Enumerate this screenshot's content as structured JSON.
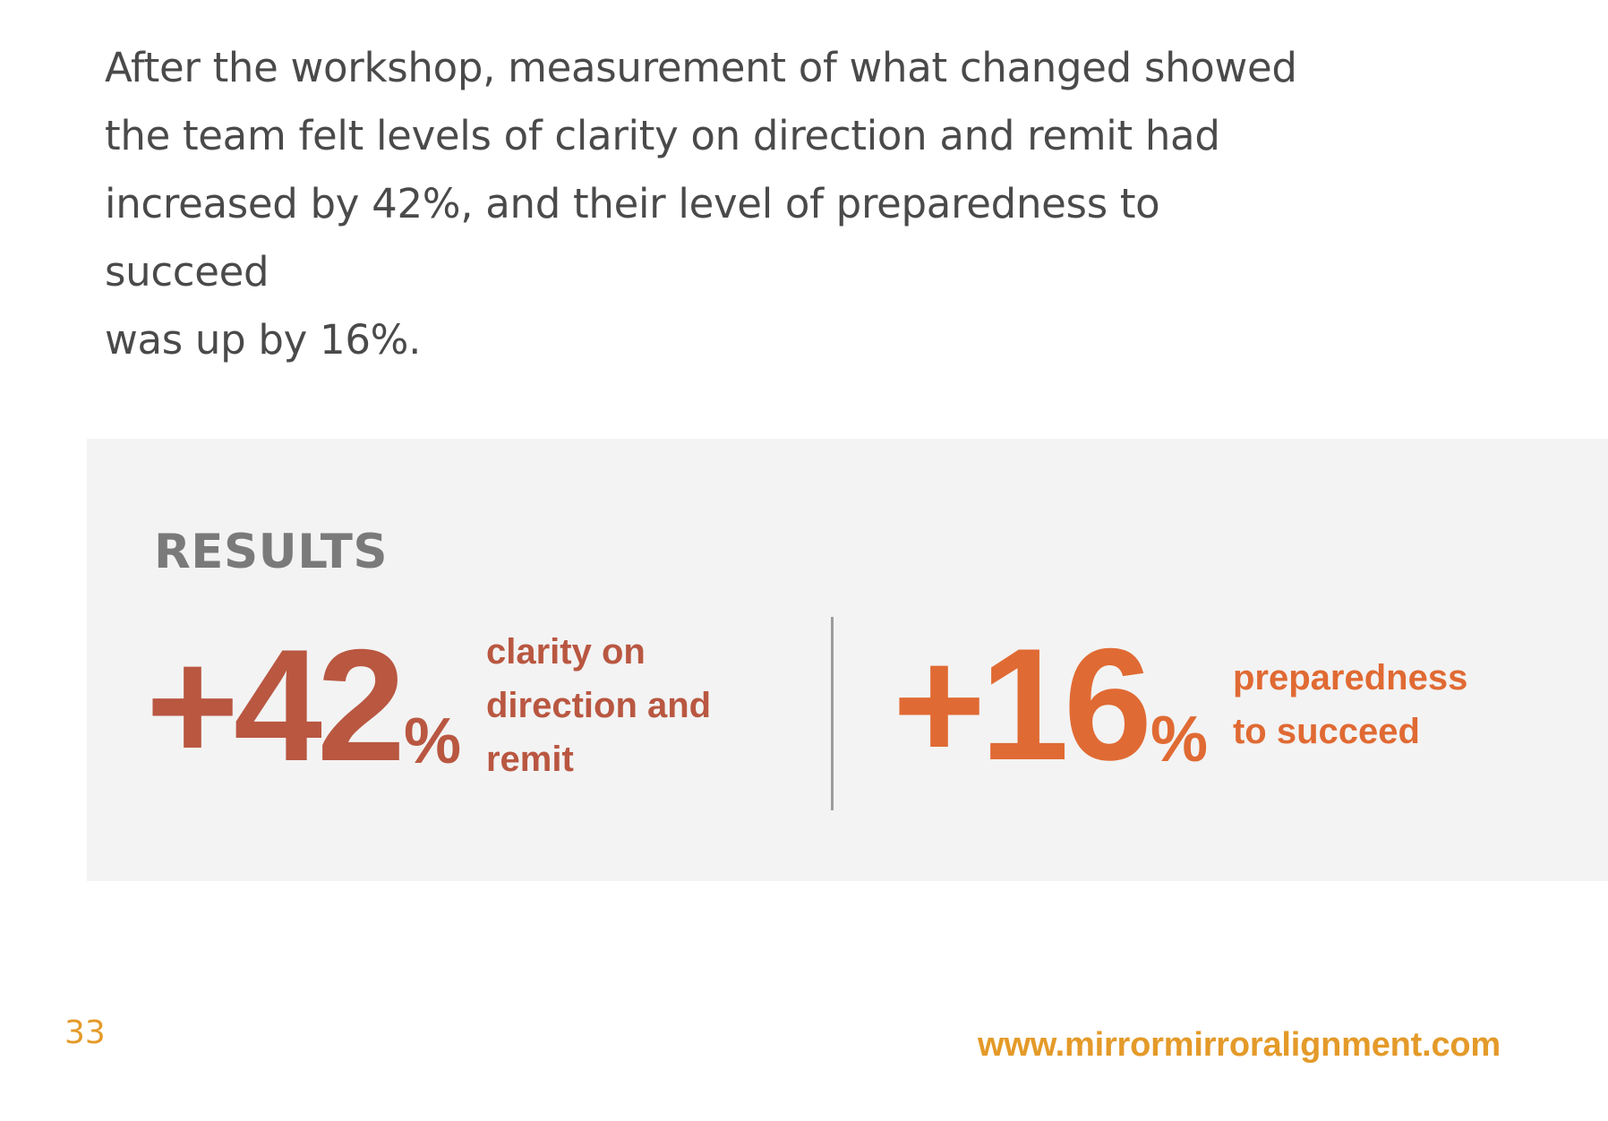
{
  "intro": {
    "lines": [
      "After the workshop, measurement of what changed showed",
      "the team felt levels of clarity on direction and remit had",
      "increased by 42%, and their level of preparedness to succeed",
      "was up by 16%."
    ]
  },
  "results": {
    "title": "RESULTS",
    "stats": [
      {
        "value": "+42",
        "percent_sign": "%",
        "label_lines": [
          "clarity on",
          "direction and",
          "remit"
        ],
        "color": "#b95741"
      },
      {
        "value": "+16",
        "percent_sign": "%",
        "label_lines": [
          "preparedness",
          "to succeed"
        ],
        "color": "#e06a33"
      }
    ]
  },
  "footer": {
    "page_number": "33",
    "website": "www.mirrormirroralignment.com",
    "accent_color": "#e49a29"
  }
}
